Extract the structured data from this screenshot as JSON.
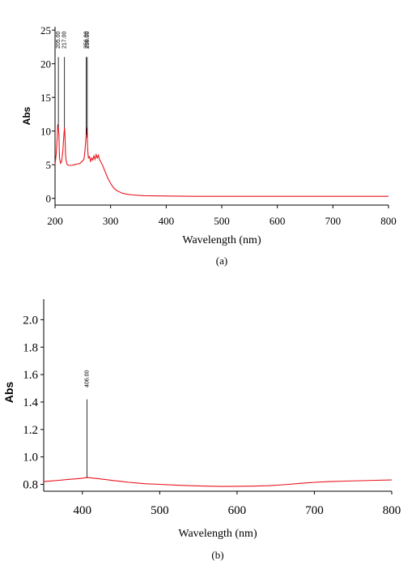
{
  "chart_data": [
    {
      "id": "a",
      "type": "line",
      "caption": "(a)",
      "xlabel": "Wavelength (nm)",
      "ylabel": "Abs",
      "xlim": [
        200,
        800
      ],
      "ylim": [
        -1,
        25.5
      ],
      "xticks": [
        200,
        300,
        400,
        500,
        600,
        700,
        800
      ],
      "yticks": [
        0,
        5,
        10,
        15,
        20,
        25
      ],
      "series": [
        {
          "color": "#e8141c",
          "x": [
            200,
            202,
            204,
            205,
            206,
            207,
            208,
            210,
            212,
            214,
            216,
            217,
            218,
            219,
            220,
            222,
            225,
            230,
            235,
            240,
            245,
            250,
            252,
            254,
            256,
            257,
            258,
            259,
            260,
            262,
            264,
            266,
            268,
            270,
            272,
            274,
            276,
            278,
            280,
            285,
            290,
            295,
            300,
            305,
            310,
            320,
            330,
            340,
            360,
            400,
            450,
            500,
            600,
            700,
            800
          ],
          "y": [
            5.0,
            6.5,
            9.0,
            11.0,
            10.5,
            9.5,
            6.0,
            5.2,
            5.5,
            7.0,
            9.5,
            10.5,
            9.0,
            6.5,
            5.6,
            5.0,
            4.9,
            4.9,
            5.0,
            5.1,
            5.2,
            5.6,
            5.8,
            7.2,
            9.5,
            10.5,
            9.0,
            7.0,
            6.0,
            6.2,
            5.5,
            6.0,
            5.7,
            6.3,
            5.8,
            6.5,
            6.0,
            6.4,
            5.8,
            5.0,
            4.0,
            3.0,
            2.2,
            1.6,
            1.2,
            0.8,
            0.6,
            0.5,
            0.4,
            0.35,
            0.3,
            0.3,
            0.3,
            0.3,
            0.3
          ]
        }
      ],
      "peaks": [
        {
          "x": 206,
          "label": "205.00",
          "top": 21
        },
        {
          "x": 217,
          "label": "217.00",
          "top": 21
        },
        {
          "x": 256,
          "label": "256.00",
          "top": 21
        },
        {
          "x": 258,
          "label": "258.00",
          "top": 21
        }
      ]
    },
    {
      "id": "b",
      "type": "line",
      "caption": "(b)",
      "xlabel": "Wavelength (nm)",
      "ylabel": "Abs",
      "xlim": [
        350,
        800
      ],
      "ylim": [
        0.75,
        2.15
      ],
      "xticks": [
        400,
        500,
        600,
        700,
        800
      ],
      "yticks": [
        0.8,
        1.0,
        1.2,
        1.4,
        1.6,
        1.8,
        2.0
      ],
      "ytick_labels": [
        "0.8",
        "1.0",
        "1.2",
        "1.4",
        "1.6",
        "1.8",
        "2.0"
      ],
      "series": [
        {
          "color": "#e8141c",
          "x": [
            350,
            360,
            370,
            380,
            390,
            400,
            406,
            410,
            420,
            430,
            440,
            450,
            460,
            470,
            480,
            500,
            520,
            540,
            560,
            580,
            600,
            620,
            640,
            660,
            680,
            700,
            720,
            740,
            760,
            780,
            800
          ],
          "y": [
            0.82,
            0.825,
            0.83,
            0.835,
            0.84,
            0.845,
            0.85,
            0.848,
            0.842,
            0.835,
            0.828,
            0.822,
            0.815,
            0.81,
            0.805,
            0.8,
            0.795,
            0.79,
            0.787,
            0.785,
            0.786,
            0.787,
            0.79,
            0.797,
            0.807,
            0.815,
            0.82,
            0.824,
            0.827,
            0.83,
            0.832
          ]
        }
      ],
      "peaks": [
        {
          "x": 406,
          "label": "406.00",
          "top": 1.42
        }
      ]
    }
  ]
}
